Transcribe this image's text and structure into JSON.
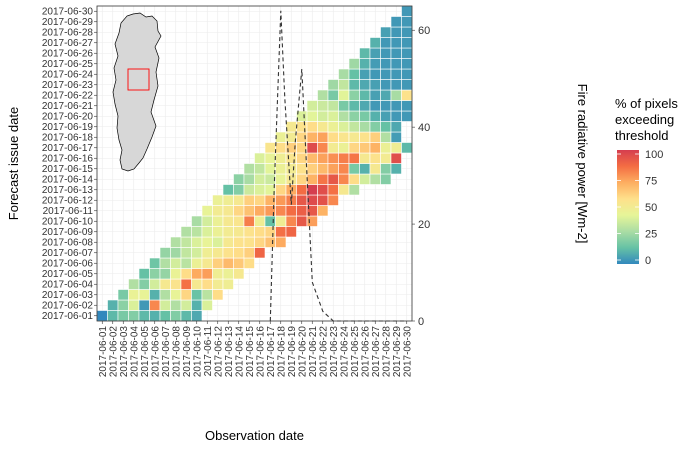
{
  "chart_data": {
    "type": "heatmap",
    "title": "",
    "xlabel": "Observation date",
    "ylabel": "Forecast issue date",
    "y2label": "Fire radiative power [Wm-2]",
    "dates": [
      "2017-06-01",
      "2017-06-02",
      "2017-06-03",
      "2017-06-04",
      "2017-06-05",
      "2017-06-06",
      "2017-06-07",
      "2017-06-08",
      "2017-06-09",
      "2017-06-10",
      "2017-06-11",
      "2017-06-12",
      "2017-06-13",
      "2017-06-14",
      "2017-06-15",
      "2017-06-16",
      "2017-06-17",
      "2017-06-18",
      "2017-06-19",
      "2017-06-20",
      "2017-06-21",
      "2017-06-22",
      "2017-06-23",
      "2017-06-24",
      "2017-06-25",
      "2017-06-26",
      "2017-06-27",
      "2017-06-28",
      "2017-06-29",
      "2017-06-30"
    ],
    "heatmap_rows": [
      [
        0,
        12,
        18,
        20,
        12,
        10,
        14,
        20,
        12,
        8
      ],
      [
        10,
        22,
        40,
        4,
        80,
        38,
        30,
        38,
        10,
        40
      ],
      [
        18,
        45,
        44,
        10,
        30,
        44,
        60,
        15,
        32,
        58
      ],
      [
        30,
        20,
        38,
        52,
        55,
        85,
        52,
        58,
        50,
        48
      ],
      [
        14,
        22,
        24,
        45,
        58,
        72,
        75,
        48,
        46,
        52
      ],
      [
        16,
        30,
        38,
        32,
        46,
        52,
        62,
        68,
        64,
        58
      ],
      [
        24,
        26,
        34,
        38,
        48,
        52,
        56,
        58,
        62,
        88
      ],
      [
        30,
        34,
        40,
        44,
        40,
        52,
        56,
        56,
        60,
        66,
        72
      ],
      [
        30,
        32,
        40,
        46,
        50,
        52,
        56,
        58,
        60,
        85,
        88
      ],
      [
        28,
        38,
        46,
        52,
        54,
        82,
        48,
        14,
        48,
        80,
        92,
        75
      ],
      [
        44,
        50,
        52,
        60,
        66,
        72,
        76,
        80,
        86,
        90,
        92,
        70
      ],
      [
        46,
        48,
        52,
        62,
        60,
        70,
        76,
        82,
        92,
        96,
        94,
        80
      ],
      [
        14,
        20,
        36,
        40,
        42,
        60,
        72,
        86,
        100,
        95,
        85,
        52,
        30
      ],
      [
        22,
        28,
        38,
        36,
        44,
        52,
        60,
        70,
        84,
        92,
        80,
        58,
        38,
        30,
        20
      ],
      [
        30,
        34,
        42,
        46,
        50,
        56,
        62,
        68,
        74,
        80,
        18,
        10,
        52,
        20,
        10
      ],
      [
        40,
        44,
        48,
        54,
        60,
        68,
        74,
        78,
        82,
        84,
        52,
        56,
        50,
        95
      ],
      [
        54,
        58,
        62,
        60,
        96,
        80,
        50,
        46,
        60,
        64,
        70,
        46,
        48,
        12
      ],
      [
        46,
        50,
        60,
        70,
        74,
        58,
        54,
        52,
        56,
        62,
        30,
        5
      ],
      [
        52,
        56,
        58,
        52,
        46,
        40,
        34,
        28,
        20,
        14,
        8
      ],
      [
        40,
        42,
        38,
        40,
        30,
        22,
        18,
        10,
        6,
        4,
        4,
        4,
        4
      ],
      [
        38,
        36,
        34,
        18,
        12,
        8,
        4,
        4,
        4,
        4,
        4,
        4,
        2
      ],
      [
        30,
        18,
        42,
        22,
        12,
        6,
        8,
        28,
        56,
        50,
        40,
        82
      ],
      [
        26,
        34,
        12,
        8,
        6,
        4,
        4,
        4,
        6,
        8
      ],
      [
        28,
        14,
        6,
        4,
        4,
        4,
        4,
        4
      ],
      [
        26,
        10,
        5,
        4,
        4,
        4,
        4
      ],
      [
        12,
        6,
        4,
        4,
        4,
        4
      ],
      [
        10,
        4,
        4,
        4
      ],
      [
        6,
        4,
        4
      ],
      [
        4,
        4
      ],
      [
        4
      ]
    ],
    "frp_series": [
      {
        "date": "2017-06-17",
        "value": 0
      },
      {
        "date": "2017-06-17",
        "value": 28
      },
      {
        "date": "2017-06-18",
        "value": 64
      },
      {
        "date": "2017-06-18",
        "value": 46
      },
      {
        "date": "2017-06-19",
        "value": 24
      },
      {
        "date": "2017-06-19",
        "value": 37
      },
      {
        "date": "2017-06-20",
        "value": 52
      },
      {
        "date": "2017-06-20",
        "value": 35
      },
      {
        "date": "2017-06-21",
        "value": 8
      },
      {
        "date": "2017-06-22",
        "value": 2
      },
      {
        "date": "2017-06-23",
        "value": 0
      },
      {
        "date": "2017-06-30",
        "value": 0
      }
    ],
    "frp_axis": {
      "range": [
        0,
        65
      ],
      "ticks": [
        0,
        20,
        40,
        60
      ],
      "side": "right"
    },
    "frp_style": "dashed",
    "legend": {
      "title": [
        "% of pixels",
        "exceeding",
        "threshold"
      ],
      "ticks": [
        100,
        75,
        50,
        25,
        0
      ],
      "range": [
        0,
        100
      ],
      "placement": "right",
      "colors": [
        "#3288bd",
        "#66c2a5",
        "#abdda4",
        "#e6f598",
        "#fee08b",
        "#fdae61",
        "#f46d43",
        "#d53e4f"
      ]
    },
    "inset_map": {
      "region": "Iberian Peninsula (Portugal)",
      "highlight_box": true,
      "box_color": "#ff0000"
    },
    "grid": true
  }
}
